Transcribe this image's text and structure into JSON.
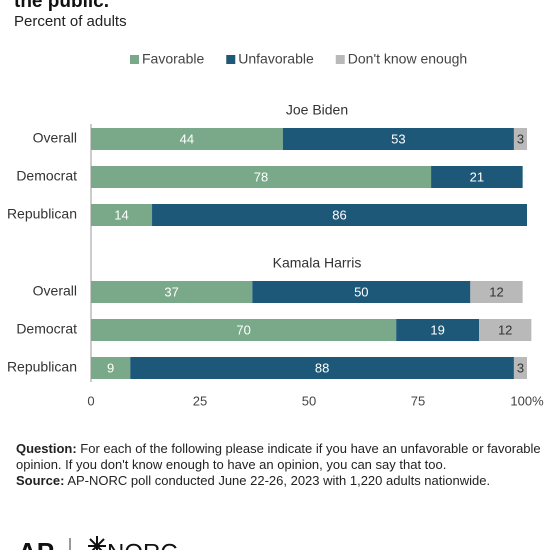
{
  "chart_data": {
    "type": "bar",
    "orientation": "horizontal",
    "stacked": true,
    "title": "the public.",
    "subtitle": "Percent of adults",
    "series": [
      {
        "name": "Favorable",
        "color": "#79a988"
      },
      {
        "name": "Unfavorable",
        "color": "#1d5878"
      },
      {
        "name": "Don't know enough",
        "color": "#b9b9b9"
      }
    ],
    "xlim": [
      0,
      100
    ],
    "xticks": [
      0,
      25,
      50,
      75,
      {
        "value": 100,
        "label": "100%"
      }
    ],
    "panels": [
      {
        "title": "Joe Biden",
        "categories": [
          "Overall",
          "Democrat",
          "Republican"
        ],
        "series": [
          {
            "values": [
              44,
              78,
              14
            ]
          },
          {
            "values": [
              53,
              21,
              86
            ]
          },
          {
            "values": [
              3,
              null,
              null
            ]
          }
        ]
      },
      {
        "title": "Kamala Harris",
        "categories": [
          "Overall",
          "Democrat",
          "Republican"
        ],
        "series": [
          {
            "values": [
              37,
              70,
              9
            ]
          },
          {
            "values": [
              50,
              19,
              88
            ]
          },
          {
            "values": [
              12,
              12,
              3
            ]
          }
        ]
      }
    ]
  },
  "notes": [
    {
      "label": "Question:",
      "text": "For each of the following please indicate if you have an unfavorable or favorable opinion. If you don't know enough to have an opinion, you can say that too."
    },
    {
      "label": "Source:",
      "text": "AP-NORC poll conducted June 22-26, 2023 with 1,220 adults nationwide."
    }
  ],
  "logo": {
    "left": "AP",
    "right": "NORC"
  }
}
